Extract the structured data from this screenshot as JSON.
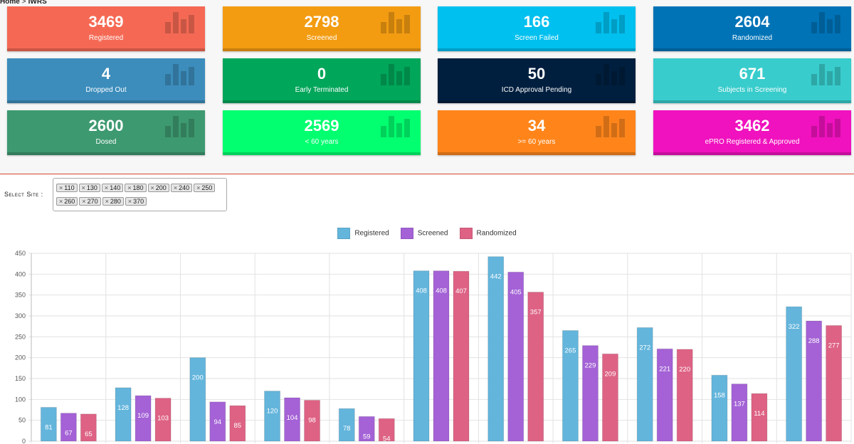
{
  "breadcrumb": {
    "home": "Home",
    "separator": ">",
    "current": "IWRS"
  },
  "cards": [
    {
      "value": "3469",
      "label": "Registered",
      "color": "#f56954"
    },
    {
      "value": "2798",
      "label": "Screened",
      "color": "#f39c12"
    },
    {
      "value": "166",
      "label": "Screen Failed",
      "color": "#00c0ef"
    },
    {
      "value": "2604",
      "label": "Randomized",
      "color": "#0073b7"
    },
    {
      "value": "4",
      "label": "Dropped Out",
      "color": "#3c8dbc"
    },
    {
      "value": "0",
      "label": "Early Terminated",
      "color": "#00a65a"
    },
    {
      "value": "50",
      "label": "ICD Approval Pending",
      "color": "#001f3f"
    },
    {
      "value": "671",
      "label": "Subjects in Screening",
      "color": "#39cccc"
    },
    {
      "value": "2600",
      "label": "Dosed",
      "color": "#3d9970"
    },
    {
      "value": "2569",
      "label": "< 60 years",
      "color": "#01ff70"
    },
    {
      "value": "34",
      "label": ">= 60 years",
      "color": "#ff851b"
    },
    {
      "value": "3462",
      "label": "ePRO Registered & Approved",
      "color": "#f012be"
    }
  ],
  "icons": {
    "card": "bar-chart-icon",
    "remove": "close-icon"
  },
  "site_filter": {
    "label": "Select Site :",
    "remove_symbol": "×",
    "selected": [
      "110",
      "130",
      "140",
      "180",
      "200",
      "240",
      "250",
      "260",
      "270",
      "280",
      "370"
    ]
  },
  "chart_data": {
    "type": "bar",
    "categories": [
      "",
      "",
      "",
      "",
      "",
      "",
      "",
      "",
      "",
      "",
      ""
    ],
    "series": [
      {
        "name": "Registered",
        "color": "#63b5dc",
        "values": [
          81,
          128,
          200,
          120,
          78,
          408,
          442,
          265,
          272,
          158,
          322
        ]
      },
      {
        "name": "Screened",
        "color": "#a462d6",
        "values": [
          67,
          109,
          94,
          104,
          59,
          408,
          405,
          229,
          221,
          137,
          288
        ]
      },
      {
        "name": "Randomized",
        "color": "#de6284",
        "values": [
          65,
          103,
          85,
          98,
          54,
          407,
          357,
          209,
          220,
          114,
          277
        ]
      }
    ],
    "ylim": [
      0,
      450
    ],
    "yticks": [
      0,
      50,
      100,
      150,
      200,
      250,
      300,
      350,
      400,
      450
    ],
    "grid": true,
    "legend": "top-center",
    "data_labels": true
  }
}
